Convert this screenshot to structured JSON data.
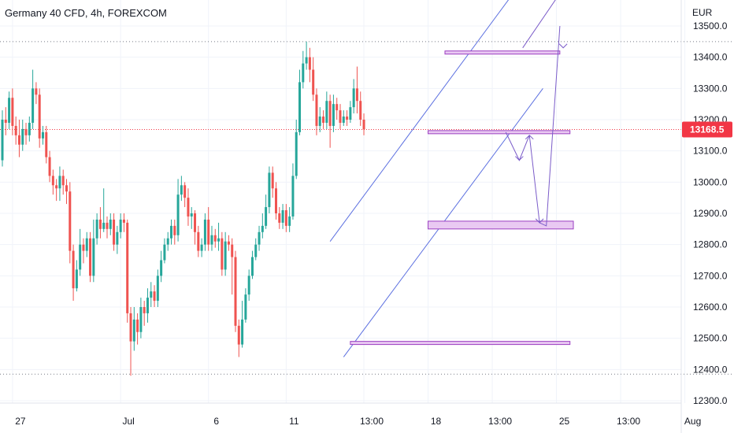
{
  "header": {
    "title": "Germany 40 CFD, 4h, FOREXCOM",
    "currency": "EUR"
  },
  "colors": {
    "up": "#26a69a",
    "down": "#ef5350",
    "drawing": "#5b6fe0",
    "zone_fill": "#e9c9f2",
    "zone_stroke": "#9b3fc1",
    "arrow": "#7b5cc9",
    "last_price": "#f23645",
    "hline": "#787b86"
  },
  "chart_data": {
    "type": "candlestick",
    "y_axis": {
      "min": 12250,
      "max": 13560,
      "ticks": [
        13500,
        13400,
        13300,
        13200,
        13100,
        13000,
        12900,
        12800,
        12700,
        12600,
        12500,
        12400,
        12300
      ],
      "tick_labels": [
        "13500.0",
        "13400.0",
        "13300.0",
        "13200.0",
        "13100.0",
        "13000.0",
        "12900.0",
        "12800.0",
        "12700.0",
        "12600.0",
        "12500.0",
        "12400.0",
        "12300.0"
      ]
    },
    "x_axis": {
      "ticks": [
        3,
        35,
        61,
        84,
        107,
        126,
        145,
        164,
        183,
        202
      ],
      "tick_labels": [
        "27",
        "Jul",
        "6",
        "11",
        "13:00",
        "18",
        "13:00",
        "25",
        "13:00",
        "Aug"
      ]
    },
    "last_price": {
      "value": 13168.5,
      "label": "13168.5"
    },
    "horizontal_lines": [
      13450,
      12385
    ],
    "candles": [
      [
        13070,
        13200,
        13050,
        13230
      ],
      [
        13200,
        13190,
        13150,
        13240
      ],
      [
        13190,
        13270,
        13170,
        13290
      ],
      [
        13270,
        13180,
        13150,
        13300
      ],
      [
        13180,
        13150,
        13120,
        13210
      ],
      [
        13150,
        13120,
        13080,
        13200
      ],
      [
        13120,
        13170,
        13100,
        13200
      ],
      [
        13170,
        13150,
        13120,
        13190
      ],
      [
        13150,
        13190,
        13130,
        13210
      ],
      [
        13190,
        13300,
        13170,
        13360
      ],
      [
        13300,
        13280,
        13250,
        13320
      ],
      [
        13280,
        13140,
        13110,
        13300
      ],
      [
        13140,
        13160,
        13120,
        13180
      ],
      [
        13160,
        13080,
        13060,
        13180
      ],
      [
        13080,
        13020,
        13000,
        13100
      ],
      [
        13020,
        12990,
        12960,
        13040
      ],
      [
        12990,
        12980,
        12940,
        13010
      ],
      [
        12980,
        13020,
        12940,
        13050
      ],
      [
        13020,
        12990,
        12960,
        13040
      ],
      [
        12990,
        12970,
        12930,
        13010
      ],
      [
        12970,
        12780,
        12740,
        13000
      ],
      [
        12780,
        12660,
        12620,
        12800
      ],
      [
        12660,
        12720,
        12650,
        12750
      ],
      [
        12720,
        12800,
        12700,
        12850
      ],
      [
        12800,
        12780,
        12740,
        12820
      ],
      [
        12780,
        12820,
        12760,
        12840
      ],
      [
        12820,
        12700,
        12680,
        12840
      ],
      [
        12700,
        12820,
        12680,
        12880
      ],
      [
        12820,
        12880,
        12800,
        12900
      ],
      [
        12880,
        12850,
        12820,
        12920
      ],
      [
        12850,
        12870,
        12840,
        12980
      ],
      [
        12870,
        12850,
        12820,
        12890
      ],
      [
        12850,
        12880,
        12830,
        12900
      ],
      [
        12880,
        12800,
        12780,
        12900
      ],
      [
        12800,
        12840,
        12770,
        12860
      ],
      [
        12840,
        12880,
        12820,
        12900
      ],
      [
        12880,
        12870,
        12840,
        12900
      ],
      [
        12870,
        12580,
        12550,
        12880
      ],
      [
        12580,
        12490,
        12380,
        12600
      ],
      [
        12490,
        12560,
        12460,
        12600
      ],
      [
        12560,
        12520,
        12480,
        12580
      ],
      [
        12520,
        12600,
        12500,
        12630
      ],
      [
        12600,
        12580,
        12540,
        12620
      ],
      [
        12580,
        12630,
        12550,
        12660
      ],
      [
        12630,
        12650,
        12600,
        12680
      ],
      [
        12650,
        12620,
        12600,
        12670
      ],
      [
        12620,
        12700,
        12600,
        12720
      ],
      [
        12700,
        12750,
        12680,
        12780
      ],
      [
        12750,
        12800,
        12740,
        12820
      ],
      [
        12800,
        12820,
        12780,
        12840
      ],
      [
        12820,
        12860,
        12800,
        12880
      ],
      [
        12860,
        12830,
        12800,
        12880
      ],
      [
        12830,
        12960,
        12810,
        13010
      ],
      [
        12960,
        12990,
        12940,
        13020
      ],
      [
        12990,
        12950,
        12920,
        13000
      ],
      [
        12950,
        12890,
        12860,
        12980
      ],
      [
        12890,
        12900,
        12850,
        12920
      ],
      [
        12900,
        12840,
        12800,
        12910
      ],
      [
        12840,
        12780,
        12760,
        12860
      ],
      [
        12780,
        12800,
        12760,
        12820
      ],
      [
        12800,
        12880,
        12780,
        12900
      ],
      [
        12880,
        12800,
        12780,
        12920
      ],
      [
        12800,
        12830,
        12780,
        12860
      ],
      [
        12830,
        12810,
        12790,
        12850
      ],
      [
        12810,
        12820,
        12780,
        12870
      ],
      [
        12820,
        12720,
        12700,
        12840
      ],
      [
        12720,
        12810,
        12700,
        12840
      ],
      [
        12810,
        12800,
        12780,
        12830
      ],
      [
        12800,
        12760,
        12640,
        12820
      ],
      [
        12760,
        12540,
        12520,
        12780
      ],
      [
        12540,
        12480,
        12440,
        12560
      ],
      [
        12480,
        12560,
        12470,
        12620
      ],
      [
        12560,
        12640,
        12550,
        12660
      ],
      [
        12640,
        12700,
        12620,
        12720
      ],
      [
        12700,
        12760,
        12690,
        12780
      ],
      [
        12760,
        12800,
        12750,
        12820
      ],
      [
        12800,
        12840,
        12780,
        12860
      ],
      [
        12840,
        12860,
        12820,
        12900
      ],
      [
        12860,
        12920,
        12850,
        12960
      ],
      [
        12920,
        13030,
        12900,
        13050
      ],
      [
        13030,
        12980,
        12950,
        13050
      ],
      [
        12980,
        12900,
        12880,
        13000
      ],
      [
        12900,
        12870,
        12850,
        12920
      ],
      [
        12870,
        12910,
        12850,
        12930
      ],
      [
        12910,
        12860,
        12840,
        12930
      ],
      [
        12860,
        12890,
        12840,
        12920
      ],
      [
        12890,
        13020,
        12880,
        13060
      ],
      [
        13020,
        13160,
        13010,
        13200
      ],
      [
        13160,
        13320,
        13150,
        13360
      ],
      [
        13320,
        13380,
        13300,
        13420
      ],
      [
        13380,
        13400,
        13360,
        13450
      ],
      [
        13400,
        13360,
        13320,
        13430
      ],
      [
        13360,
        13280,
        13260,
        13400
      ],
      [
        13280,
        13180,
        13150,
        13300
      ],
      [
        13180,
        13210,
        13160,
        13240
      ],
      [
        13210,
        13190,
        13170,
        13230
      ],
      [
        13190,
        13260,
        13170,
        13290
      ],
      [
        13260,
        13180,
        13110,
        13280
      ],
      [
        13180,
        13250,
        13160,
        13280
      ],
      [
        13250,
        13230,
        13200,
        13270
      ],
      [
        13230,
        13190,
        13170,
        13250
      ],
      [
        13190,
        13210,
        13180,
        13230
      ],
      [
        13210,
        13200,
        13180,
        13230
      ],
      [
        13200,
        13240,
        13190,
        13260
      ],
      [
        13240,
        13300,
        13220,
        13330
      ],
      [
        13300,
        13260,
        13220,
        13370
      ],
      [
        13260,
        13200,
        13180,
        13290
      ],
      [
        13200,
        13169,
        13150,
        13220
      ]
    ]
  },
  "drawings": {
    "channel_upper": [
      [
        97,
        12810
      ],
      [
        155,
        13660
      ]
    ],
    "channel_lower": [
      [
        101,
        12440
      ],
      [
        160,
        13300
      ]
    ],
    "zones": [
      {
        "x0": 131,
        "x1": 165,
        "top": 13420,
        "bottom": 13410
      },
      {
        "x0": 126,
        "x1": 168,
        "top": 13165,
        "bottom": 13155
      },
      {
        "x0": 126,
        "x1": 169,
        "top": 12875,
        "bottom": 12850
      },
      {
        "x0": 103,
        "x1": 168,
        "top": 12490,
        "bottom": 12480
      }
    ],
    "path_up": [
      [
        154,
        13430
      ],
      [
        166,
        13620
      ],
      [
        168,
        13700
      ]
    ],
    "path_main": [
      [
        153,
        13168
      ],
      [
        154,
        13130
      ],
      [
        157,
        13070
      ],
      [
        160,
        13150
      ],
      [
        162,
        12890
      ],
      [
        166,
        13380
      ],
      [
        168,
        13560
      ]
    ],
    "path_left": [
      [
        149,
        13160
      ],
      [
        153,
        13070
      ],
      [
        156,
        13150
      ],
      [
        159,
        12870
      ],
      [
        161,
        12860
      ],
      [
        165,
        13500
      ]
    ]
  }
}
